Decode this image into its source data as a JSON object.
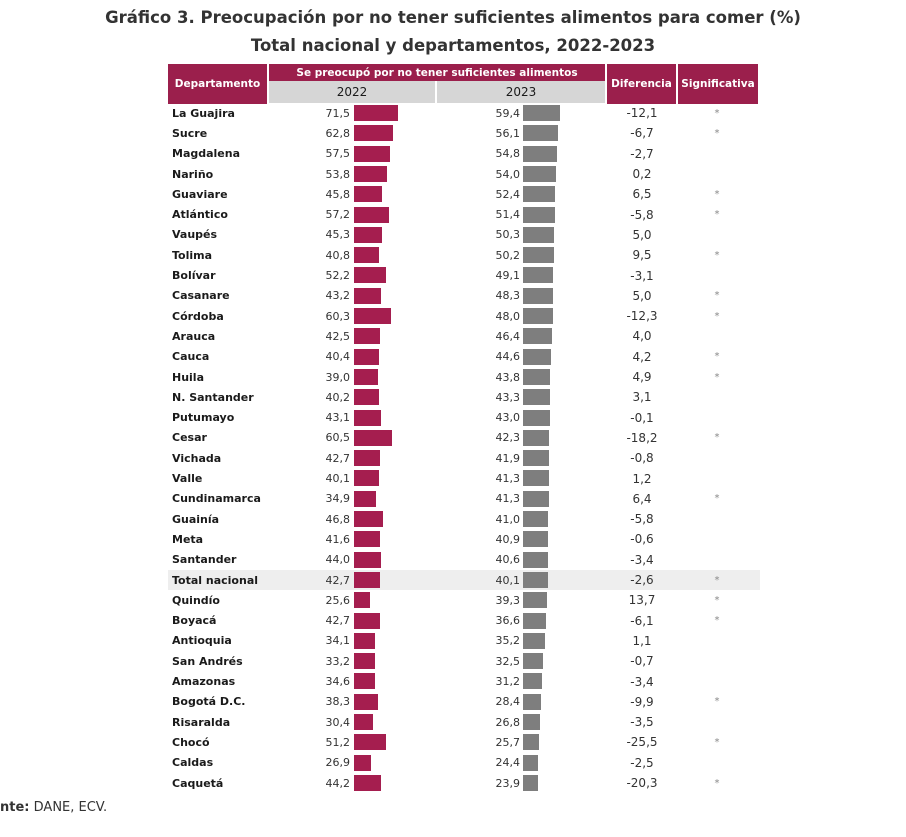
{
  "title_line1": "Gráfico 3. Preocupación por no tener suficientes alimentos para comer (%)",
  "title_line2": "Total nacional y departamentos, 2022-2023",
  "header": {
    "departamento": "Departamento",
    "group": "Se preocupó por no tener suficientes alimentos",
    "y2022": "2022",
    "y2023": "2023",
    "diferencia": "Diferencia",
    "significativa": "Significativa"
  },
  "colors": {
    "header": "#9b1f4c",
    "bar_2022": "#a51e4f",
    "bar_2023": "#7e7e7e",
    "subheader": "#d6d6d6"
  },
  "source_label": "nte:",
  "source_text": "DANE, ECV.",
  "chart_data": {
    "type": "table",
    "columns": [
      "Departamento",
      "2022",
      "2023",
      "Diferencia",
      "Significativa"
    ],
    "rows": [
      {
        "dept": "La Guajira",
        "v2022": "71,5",
        "v2023": "59,4",
        "diff": "-12,1",
        "sig": "*",
        "n2022": 71.5,
        "n2023": 59.4
      },
      {
        "dept": "Sucre",
        "v2022": "62,8",
        "v2023": "56,1",
        "diff": "-6,7",
        "sig": "*",
        "n2022": 62.8,
        "n2023": 56.1
      },
      {
        "dept": "Magdalena",
        "v2022": "57,5",
        "v2023": "54,8",
        "diff": "-2,7",
        "sig": "",
        "n2022": 57.5,
        "n2023": 54.8
      },
      {
        "dept": "Nariño",
        "v2022": "53,8",
        "v2023": "54,0",
        "diff": "0,2",
        "sig": "",
        "n2022": 53.8,
        "n2023": 54.0
      },
      {
        "dept": "Guaviare",
        "v2022": "45,8",
        "v2023": "52,4",
        "diff": "6,5",
        "sig": "*",
        "n2022": 45.8,
        "n2023": 52.4
      },
      {
        "dept": "Atlántico",
        "v2022": "57,2",
        "v2023": "51,4",
        "diff": "-5,8",
        "sig": "*",
        "n2022": 57.2,
        "n2023": 51.4
      },
      {
        "dept": "Vaupés",
        "v2022": "45,3",
        "v2023": "50,3",
        "diff": "5,0",
        "sig": "",
        "n2022": 45.3,
        "n2023": 50.3
      },
      {
        "dept": "Tolima",
        "v2022": "40,8",
        "v2023": "50,2",
        "diff": "9,5",
        "sig": "*",
        "n2022": 40.8,
        "n2023": 50.2
      },
      {
        "dept": "Bolívar",
        "v2022": "52,2",
        "v2023": "49,1",
        "diff": "-3,1",
        "sig": "",
        "n2022": 52.2,
        "n2023": 49.1
      },
      {
        "dept": "Casanare",
        "v2022": "43,2",
        "v2023": "48,3",
        "diff": "5,0",
        "sig": "*",
        "n2022": 43.2,
        "n2023": 48.3
      },
      {
        "dept": "Córdoba",
        "v2022": "60,3",
        "v2023": "48,0",
        "diff": "-12,3",
        "sig": "*",
        "n2022": 60.3,
        "n2023": 48.0
      },
      {
        "dept": "Arauca",
        "v2022": "42,5",
        "v2023": "46,4",
        "diff": "4,0",
        "sig": "",
        "n2022": 42.5,
        "n2023": 46.4
      },
      {
        "dept": "Cauca",
        "v2022": "40,4",
        "v2023": "44,6",
        "diff": "4,2",
        "sig": "*",
        "n2022": 40.4,
        "n2023": 44.6
      },
      {
        "dept": "Huila",
        "v2022": "39,0",
        "v2023": "43,8",
        "diff": "4,9",
        "sig": "*",
        "n2022": 39.0,
        "n2023": 43.8
      },
      {
        "dept": "N. Santander",
        "v2022": "40,2",
        "v2023": "43,3",
        "diff": "3,1",
        "sig": "",
        "n2022": 40.2,
        "n2023": 43.3
      },
      {
        "dept": "Putumayo",
        "v2022": "43,1",
        "v2023": "43,0",
        "diff": "-0,1",
        "sig": "",
        "n2022": 43.1,
        "n2023": 43.0
      },
      {
        "dept": "Cesar",
        "v2022": "60,5",
        "v2023": "42,3",
        "diff": "-18,2",
        "sig": "*",
        "n2022": 60.5,
        "n2023": 42.3
      },
      {
        "dept": "Vichada",
        "v2022": "42,7",
        "v2023": "41,9",
        "diff": "-0,8",
        "sig": "",
        "n2022": 42.7,
        "n2023": 41.9
      },
      {
        "dept": "Valle",
        "v2022": "40,1",
        "v2023": "41,3",
        "diff": "1,2",
        "sig": "",
        "n2022": 40.1,
        "n2023": 41.3
      },
      {
        "dept": "Cundinamarca",
        "v2022": "34,9",
        "v2023": "41,3",
        "diff": "6,4",
        "sig": "*",
        "n2022": 34.9,
        "n2023": 41.3
      },
      {
        "dept": "Guainía",
        "v2022": "46,8",
        "v2023": "41,0",
        "diff": "-5,8",
        "sig": "",
        "n2022": 46.8,
        "n2023": 41.0
      },
      {
        "dept": "Meta",
        "v2022": "41,6",
        "v2023": "40,9",
        "diff": "-0,6",
        "sig": "",
        "n2022": 41.6,
        "n2023": 40.9
      },
      {
        "dept": "Santander",
        "v2022": "44,0",
        "v2023": "40,6",
        "diff": "-3,4",
        "sig": "",
        "n2022": 44.0,
        "n2023": 40.6
      },
      {
        "dept": "Total nacional",
        "v2022": "42,7",
        "v2023": "40,1",
        "diff": "-2,6",
        "sig": "*",
        "n2022": 42.7,
        "n2023": 40.1,
        "highlight": true
      },
      {
        "dept": "Quindío",
        "v2022": "25,6",
        "v2023": "39,3",
        "diff": "13,7",
        "sig": "*",
        "n2022": 25.6,
        "n2023": 39.3
      },
      {
        "dept": "Boyacá",
        "v2022": "42,7",
        "v2023": "36,6",
        "diff": "-6,1",
        "sig": "*",
        "n2022": 42.7,
        "n2023": 36.6
      },
      {
        "dept": "Antioquia",
        "v2022": "34,1",
        "v2023": "35,2",
        "diff": "1,1",
        "sig": "",
        "n2022": 34.1,
        "n2023": 35.2
      },
      {
        "dept": "San Andrés",
        "v2022": "33,2",
        "v2023": "32,5",
        "diff": "-0,7",
        "sig": "",
        "n2022": 33.2,
        "n2023": 32.5
      },
      {
        "dept": "Amazonas",
        "v2022": "34,6",
        "v2023": "31,2",
        "diff": "-3,4",
        "sig": "",
        "n2022": 34.6,
        "n2023": 31.2
      },
      {
        "dept": "Bogotá D.C.",
        "v2022": "38,3",
        "v2023": "28,4",
        "diff": "-9,9",
        "sig": "*",
        "n2022": 38.3,
        "n2023": 28.4
      },
      {
        "dept": "Risaralda",
        "v2022": "30,4",
        "v2023": "26,8",
        "diff": "-3,5",
        "sig": "",
        "n2022": 30.4,
        "n2023": 26.8
      },
      {
        "dept": "Chocó",
        "v2022": "51,2",
        "v2023": "25,7",
        "diff": "-25,5",
        "sig": "*",
        "n2022": 51.2,
        "n2023": 25.7
      },
      {
        "dept": "Caldas",
        "v2022": "26,9",
        "v2023": "24,4",
        "diff": "-2,5",
        "sig": "",
        "n2022": 26.9,
        "n2023": 24.4
      },
      {
        "dept": "Caquetá",
        "v2022": "44,2",
        "v2023": "23,9",
        "diff": "-20,3",
        "sig": "*",
        "n2022": 44.2,
        "n2023": 23.9
      }
    ]
  }
}
